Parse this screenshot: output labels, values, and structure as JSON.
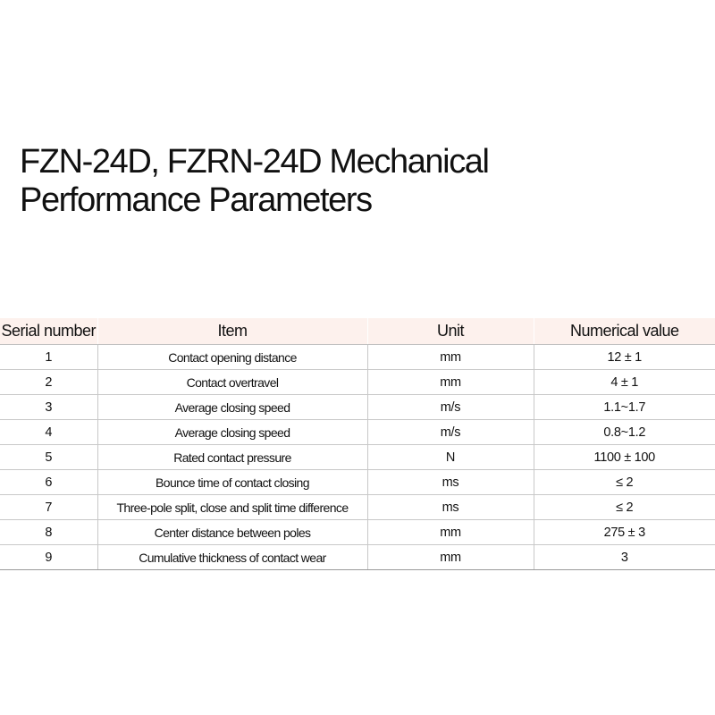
{
  "title": {
    "line1": "FZN-24D, FZRN-24D Mechanical",
    "line2": "Performance Parameters"
  },
  "table": {
    "headers": {
      "serial": "Serial number",
      "item": "Item",
      "unit": "Unit",
      "value": "Numerical value"
    },
    "rows": [
      {
        "serial": "1",
        "item": "Contact opening distance",
        "unit": "mm",
        "value": "12 ± 1"
      },
      {
        "serial": "2",
        "item": "Contact overtravel",
        "unit": "mm",
        "value": "4 ± 1"
      },
      {
        "serial": "3",
        "item": "Average closing speed",
        "unit": "m/s",
        "value": "1.1~1.7"
      },
      {
        "serial": "4",
        "item": "Average closing speed",
        "unit": "m/s",
        "value": "0.8~1.2"
      },
      {
        "serial": "5",
        "item": "Rated contact pressure",
        "unit": "N",
        "value": "1100 ± 100"
      },
      {
        "serial": "6",
        "item": "Bounce time of contact closing",
        "unit": "ms",
        "value": "≤ 2"
      },
      {
        "serial": "7",
        "item": "Three-pole split, close and split time difference",
        "unit": "ms",
        "value": "≤ 2"
      },
      {
        "serial": "8",
        "item": "Center distance between poles",
        "unit": "mm",
        "value": "275 ± 3"
      },
      {
        "serial": "9",
        "item": "Cumulative thickness of contact wear",
        "unit": "mm",
        "value": "3"
      }
    ]
  },
  "colors": {
    "header_background": "#fdf1ed",
    "text": "#111111",
    "row_border": "#c8c8c8"
  }
}
